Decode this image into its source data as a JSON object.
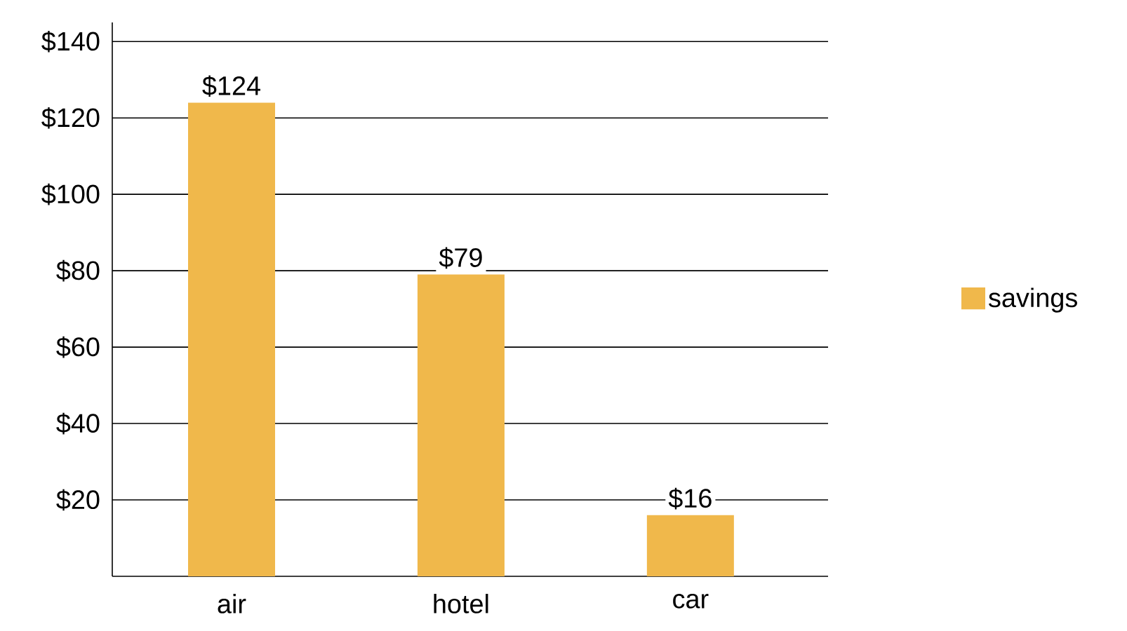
{
  "chart_data": {
    "type": "bar",
    "categories": [
      "air",
      "hotel",
      "car"
    ],
    "series": [
      {
        "name": "savings",
        "color": "#f0b84b",
        "values": [
          124,
          79,
          16
        ],
        "value_labels": [
          "$124",
          "$79",
          "$16"
        ]
      }
    ],
    "ylim": [
      0,
      145
    ],
    "yticks": [
      {
        "value": 20,
        "label": "$20"
      },
      {
        "value": 40,
        "label": "$40"
      },
      {
        "value": 60,
        "label": "$60"
      },
      {
        "value": 80,
        "label": "$80"
      },
      {
        "value": 100,
        "label": "$100"
      },
      {
        "value": 120,
        "label": "$120"
      },
      {
        "value": 140,
        "label": "$140"
      }
    ],
    "grid": "y",
    "legend": "right"
  }
}
